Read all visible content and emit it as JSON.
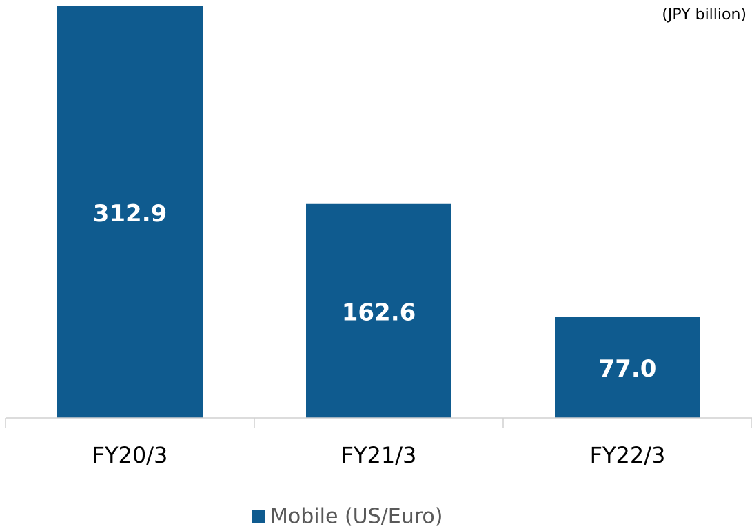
{
  "chart_data": {
    "type": "bar",
    "annotation": "(JPY billion)",
    "categories": [
      "FY20/3",
      "FY21/3",
      "FY22/3"
    ],
    "series": [
      {
        "name": "Mobile (US/Euro)",
        "color": "#0f5b8f",
        "values": [
          312.9,
          162.6,
          77.0
        ],
        "value_labels": [
          "312.9",
          "162.6",
          "77.0"
        ]
      }
    ]
  }
}
